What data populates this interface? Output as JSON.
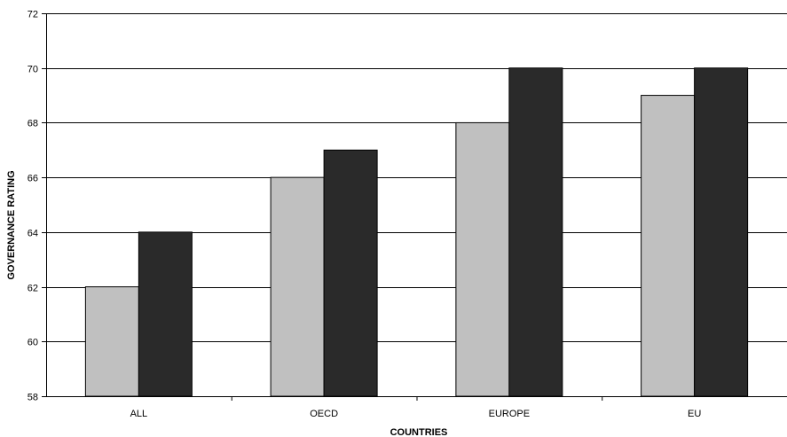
{
  "chart_data": {
    "type": "bar",
    "title": "",
    "xlabel": "COUNTRIES",
    "ylabel": "GOVERNANCE RATING",
    "categories": [
      "ALL",
      "OECD",
      "EUROPE",
      "EU"
    ],
    "series": [
      {
        "values": [
          62,
          66,
          68,
          69
        ],
        "color": "#c0c0c0"
      },
      {
        "values": [
          64,
          67,
          70,
          70
        ],
        "color": "#2a2a2a"
      }
    ],
    "ylim": [
      58,
      72
    ],
    "yticks": [
      "58",
      "60",
      "62",
      "64",
      "66",
      "68",
      "70",
      "72"
    ],
    "grid": true,
    "legend": "none"
  }
}
